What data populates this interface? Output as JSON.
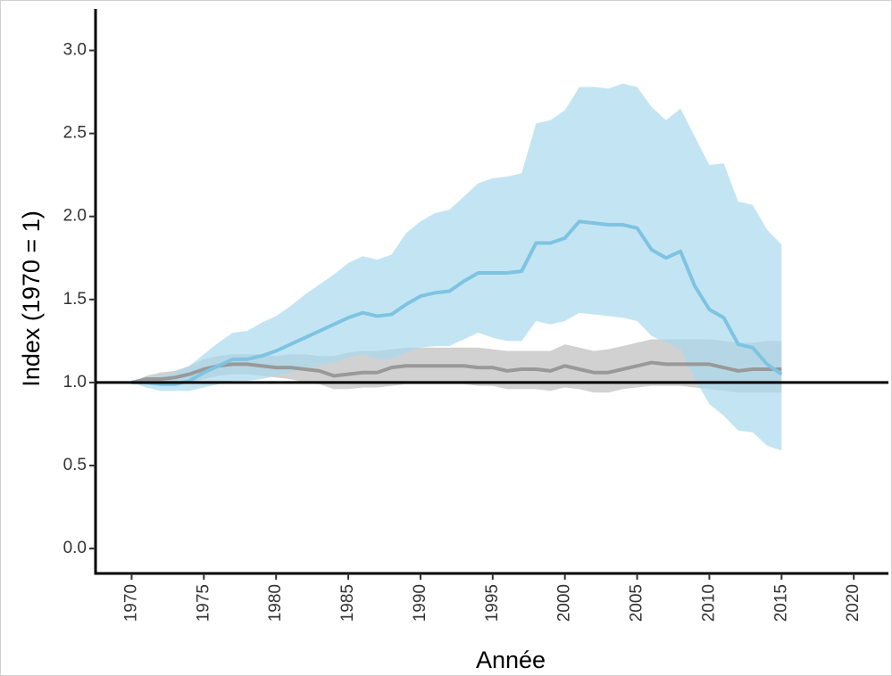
{
  "chart_data": {
    "type": "line",
    "xlabel": "Année",
    "ylabel": "Index (1970 = 1)",
    "xlim": [
      1967.5,
      2022.4
    ],
    "ylim": [
      -0.15,
      3.25
    ],
    "xticks": [
      1970,
      1975,
      1980,
      1985,
      1990,
      1995,
      2000,
      2005,
      2010,
      2015,
      2020
    ],
    "yticks": [
      {
        "value": 0,
        "label": "0.0"
      },
      0.5,
      {
        "value": 1,
        "label": "1.0"
      },
      1.5,
      {
        "value": 2,
        "label": "2.0"
      },
      2.5,
      {
        "value": 3,
        "label": "3.0"
      }
    ],
    "hline": 1,
    "x": [
      1970,
      1971,
      1972,
      1973,
      1974,
      1975,
      1976,
      1977,
      1978,
      1979,
      1980,
      1981,
      1982,
      1983,
      1984,
      1985,
      1986,
      1987,
      1988,
      1989,
      1990,
      1991,
      1992,
      1993,
      1994,
      1995,
      1996,
      1997,
      1998,
      1999,
      2000,
      2001,
      2002,
      2003,
      2004,
      2005,
      2006,
      2007,
      2008,
      2009,
      2010,
      2011,
      2012,
      2013,
      2014,
      2015
    ],
    "series": [
      {
        "color": "#999999",
        "band_color": "#bdbdbd",
        "values": [
          1.0,
          1.02,
          1.02,
          1.03,
          1.05,
          1.08,
          1.1,
          1.11,
          1.11,
          1.1,
          1.09,
          1.09,
          1.08,
          1.07,
          1.04,
          1.05,
          1.06,
          1.06,
          1.09,
          1.1,
          1.1,
          1.1,
          1.1,
          1.1,
          1.09,
          1.09,
          1.07,
          1.08,
          1.08,
          1.07,
          1.1,
          1.08,
          1.06,
          1.06,
          1.08,
          1.1,
          1.12,
          1.11,
          1.11,
          1.11,
          1.11,
          1.09,
          1.07,
          1.08,
          1.08,
          1.08
        ],
        "upper": [
          1.0,
          1.04,
          1.06,
          1.07,
          1.1,
          1.14,
          1.16,
          1.17,
          1.17,
          1.17,
          1.16,
          1.17,
          1.17,
          1.16,
          1.16,
          1.18,
          1.19,
          1.19,
          1.2,
          1.21,
          1.21,
          1.21,
          1.21,
          1.21,
          1.21,
          1.2,
          1.19,
          1.19,
          1.19,
          1.19,
          1.23,
          1.21,
          1.19,
          1.2,
          1.22,
          1.24,
          1.26,
          1.26,
          1.26,
          1.26,
          1.26,
          1.25,
          1.24,
          1.24,
          1.25,
          1.25
        ],
        "lower": [
          1.0,
          1.0,
          0.99,
          0.99,
          1.0,
          1.02,
          1.04,
          1.05,
          1.05,
          1.04,
          1.03,
          1.02,
          1.0,
          0.99,
          0.96,
          0.96,
          0.97,
          0.97,
          0.98,
          0.99,
          0.99,
          0.99,
          0.99,
          0.99,
          0.98,
          0.98,
          0.96,
          0.96,
          0.96,
          0.95,
          0.97,
          0.96,
          0.94,
          0.94,
          0.96,
          0.97,
          0.98,
          0.98,
          0.98,
          0.97,
          0.96,
          0.95,
          0.94,
          0.94,
          0.94,
          0.94
        ]
      },
      {
        "color": "#7ec4e2",
        "band_color": "#a9daee",
        "values": [
          1.0,
          1.0,
          0.99,
          0.99,
          1.01,
          1.06,
          1.1,
          1.14,
          1.14,
          1.16,
          1.19,
          1.23,
          1.27,
          1.31,
          1.35,
          1.39,
          1.42,
          1.4,
          1.41,
          1.47,
          1.52,
          1.54,
          1.55,
          1.61,
          1.66,
          1.66,
          1.66,
          1.67,
          1.84,
          1.84,
          1.87,
          1.97,
          1.96,
          1.95,
          1.95,
          1.93,
          1.8,
          1.75,
          1.79,
          1.58,
          1.44,
          1.39,
          1.23,
          1.21,
          1.11,
          1.05
        ],
        "upper": [
          1.0,
          1.03,
          1.04,
          1.06,
          1.1,
          1.17,
          1.24,
          1.3,
          1.31,
          1.36,
          1.4,
          1.46,
          1.53,
          1.59,
          1.65,
          1.72,
          1.76,
          1.74,
          1.77,
          1.9,
          1.97,
          2.02,
          2.04,
          2.12,
          2.2,
          2.23,
          2.24,
          2.26,
          2.56,
          2.58,
          2.64,
          2.78,
          2.78,
          2.77,
          2.8,
          2.78,
          2.66,
          2.58,
          2.65,
          2.48,
          2.31,
          2.32,
          2.09,
          2.07,
          1.92,
          1.83
        ],
        "lower": [
          1.0,
          0.97,
          0.95,
          0.95,
          0.95,
          0.97,
          0.99,
          1.01,
          1.01,
          1.02,
          1.04,
          1.06,
          1.08,
          1.1,
          1.12,
          1.15,
          1.17,
          1.14,
          1.14,
          1.18,
          1.21,
          1.22,
          1.22,
          1.26,
          1.3,
          1.27,
          1.25,
          1.25,
          1.37,
          1.35,
          1.37,
          1.42,
          1.41,
          1.4,
          1.39,
          1.37,
          1.28,
          1.24,
          1.2,
          1.02,
          0.87,
          0.8,
          0.71,
          0.7,
          0.62,
          0.59
        ]
      }
    ]
  }
}
